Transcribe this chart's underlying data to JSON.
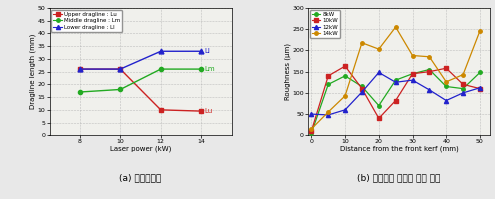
{
  "left": {
    "x": [
      8,
      10,
      12,
      14
    ],
    "upper": [
      26,
      26,
      10,
      9.5
    ],
    "middle": [
      17,
      18,
      26,
      26
    ],
    "lower": [
      26,
      26,
      33,
      33
    ],
    "xlabel": "Laser power (kW)",
    "ylabel": "Dragline length (mm)",
    "ylim": [
      0,
      50
    ],
    "yticks": [
      0,
      5,
      10,
      15,
      20,
      25,
      30,
      35,
      40,
      45,
      50
    ],
    "xticks": [
      8,
      10,
      12,
      14
    ],
    "legend_labels": [
      "Upper dragline : Lu",
      "Middle dragline : Lm",
      "Lower dragline : Ll"
    ],
    "upper_color": "#cc2222",
    "middle_color": "#22aa22",
    "lower_color": "#2222cc",
    "label_Lu": "Lu",
    "label_Lm": "Lm",
    "label_Ll": "Ll",
    "caption": "(a) 드래그라인"
  },
  "right": {
    "x": [
      0,
      5,
      10,
      15,
      20,
      25,
      30,
      35,
      40,
      45,
      50
    ],
    "y_8kW": [
      5,
      120,
      140,
      115,
      70,
      130,
      145,
      155,
      115,
      110,
      148
    ],
    "y_10kW": [
      10,
      140,
      163,
      110,
      40,
      82,
      145,
      150,
      158,
      120,
      110
    ],
    "y_12kW": [
      50,
      48,
      60,
      102,
      148,
      125,
      130,
      107,
      82,
      100,
      112
    ],
    "y_14kW": [
      15,
      55,
      93,
      218,
      203,
      255,
      188,
      185,
      126,
      143,
      246
    ],
    "xlabel": "Distance from the front kerf (mm)",
    "ylabel": "Roughness (μm)",
    "ylim": [
      0,
      300
    ],
    "yticks": [
      0,
      50,
      100,
      150,
      200,
      250,
      300
    ],
    "xticks": [
      0,
      10,
      20,
      30,
      40,
      50
    ],
    "legend_labels": [
      "8kW",
      "10kW",
      "12kW",
      "14kW"
    ],
    "color_8kW": "#22aa22",
    "color_10kW": "#cc2222",
    "color_12kW": "#2222cc",
    "color_14kW": "#cc8800",
    "caption": "(b) 전면에서 거리에 따른 조도"
  },
  "fig_bg": "#e8e8e8"
}
